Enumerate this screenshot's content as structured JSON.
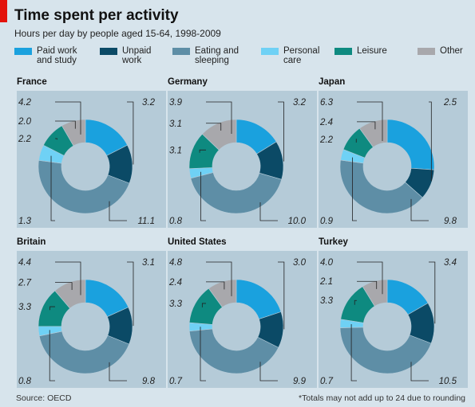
{
  "header": {
    "title": "Time spent per activity",
    "subtitle": "Hours per day by people aged 15-64, 1998-2009"
  },
  "legend": [
    {
      "label": "Paid work and study",
      "lines": [
        "Paid work",
        "and study"
      ],
      "color": "#1aa1de"
    },
    {
      "label": "Unpaid work",
      "lines": [
        "Unpaid",
        "work"
      ],
      "color": "#0b4a66"
    },
    {
      "label": "Eating and sleeping",
      "lines": [
        "Eating and",
        "sleeping"
      ],
      "color": "#5e8ea6"
    },
    {
      "label": "Personal care",
      "lines": [
        "Personal",
        "care"
      ],
      "color": "#6fd1f5"
    },
    {
      "label": "Leisure",
      "lines": [
        "Leisure"
      ],
      "color": "#0e8a80"
    },
    {
      "label": "Other",
      "lines": [
        "Other"
      ],
      "color": "#a8a8ac"
    }
  ],
  "chart_data": {
    "type": "donut",
    "categories": [
      "Paid work and study",
      "Unpaid work",
      "Eating and sleeping",
      "Personal care",
      "Leisure",
      "Other"
    ],
    "unit": "hours per day",
    "panels": [
      {
        "country": "France",
        "values": [
          4.2,
          3.2,
          11.1,
          1.3,
          2.2,
          2.0
        ],
        "labels": [
          "4.2",
          "3.2",
          "11.1",
          "1.3",
          "2.2",
          "2.0"
        ]
      },
      {
        "country": "Germany",
        "values": [
          3.9,
          3.2,
          10.0,
          0.8,
          3.1,
          3.1
        ],
        "labels": [
          "3.9",
          "3.2",
          "10.0",
          "0.8",
          "3.1",
          "3.1"
        ]
      },
      {
        "country": "Japan",
        "values": [
          6.3,
          2.5,
          9.8,
          0.9,
          2.2,
          2.4
        ],
        "labels": [
          "6.3",
          "2.5",
          "9.8",
          "0.9",
          "2.2",
          "2.4"
        ]
      },
      {
        "country": "Britain",
        "values": [
          4.4,
          3.1,
          9.8,
          0.8,
          3.3,
          2.7
        ],
        "labels": [
          "4.4",
          "3.1",
          "9.8",
          "0.8",
          "3.3",
          "2.7"
        ]
      },
      {
        "country": "United States",
        "values": [
          4.8,
          3.0,
          9.9,
          0.7,
          3.3,
          2.4
        ],
        "labels": [
          "4.8",
          "3.0",
          "9.9",
          "0.7",
          "3.3",
          "2.4"
        ]
      },
      {
        "country": "Turkey",
        "values": [
          4.0,
          3.4,
          10.5,
          0.7,
          3.3,
          2.1
        ],
        "labels": [
          "4.0",
          "3.4",
          "10.5",
          "0.7",
          "3.3",
          "2.1"
        ]
      }
    ]
  },
  "footer": {
    "source": "Source: OECD",
    "note": "*Totals may not add up to 24 due to rounding"
  }
}
